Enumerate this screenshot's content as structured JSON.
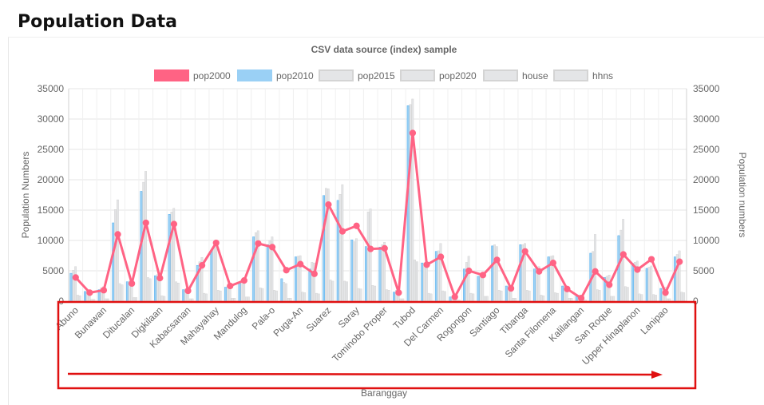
{
  "page": {
    "title": "Population Data"
  },
  "chart_data": {
    "type": "bar",
    "title": "CSV data source (index) sample",
    "xlabel": "Baranggay",
    "ylabel": "Population Numbers",
    "y2label": "Population numbers",
    "ylim": [
      0,
      35000
    ],
    "yticks": [
      "0",
      "5000",
      "10000",
      "15000",
      "20000",
      "25000",
      "30000",
      "35000"
    ],
    "legend_position": "top",
    "grid": true,
    "categories": [
      "Abuno",
      "",
      "Bunawan",
      "",
      "Ditucalan",
      "",
      "Digkilaan",
      "",
      "Kabacsanan",
      "",
      "Mahayahay",
      "",
      "Mandulog",
      "",
      "Pala-o",
      "",
      "Puga-An",
      "",
      "Suarez",
      "",
      "Saray",
      "",
      "Tominobo Proper",
      "",
      "Tubod",
      "",
      "Del Carmen",
      "",
      "Rogongon",
      "",
      "Santiago",
      "",
      "Tibanga",
      "",
      "Santa Filomena",
      "",
      "Kalilangan",
      "",
      "San Roque",
      "",
      "Upper Hinaplanon",
      "",
      "Lanipao",
      ""
    ],
    "series": [
      {
        "name": "pop2000",
        "type": "line",
        "color": "#ff6384",
        "values": [
          3900,
          1400,
          1800,
          11000,
          2900,
          12900,
          3800,
          12700,
          1700,
          5900,
          9600,
          2500,
          3400,
          9500,
          8900,
          5100,
          6100,
          4500,
          15900,
          11500,
          12400,
          8600,
          8700,
          1400,
          27700,
          6000,
          7300,
          700,
          5000,
          4300,
          6800,
          2100,
          8200,
          4900,
          6300,
          2000,
          500,
          4900,
          2700,
          7700,
          5200,
          6900,
          1400,
          6500
        ]
      },
      {
        "name": "pop2010",
        "type": "bar",
        "color": "#9ad0f5",
        "values": [
          4600,
          1600,
          1900,
          12900,
          3200,
          18100,
          4200,
          14300,
          1900,
          5900,
          8400,
          2300,
          3200,
          10600,
          9300,
          3700,
          7300,
          5300,
          17400,
          16600,
          10100,
          9000,
          8900,
          1500,
          32200,
          6300,
          8200,
          700,
          5300,
          4100,
          9100,
          2500,
          9300,
          5300,
          7300,
          2500,
          900,
          7900,
          3900,
          10800,
          6200,
          5400,
          2100,
          7300
        ]
      },
      {
        "name": "pop2015",
        "type": "bar",
        "color": "#e4e5e7",
        "values": [
          5100,
          1700,
          2200,
          15100,
          3300,
          19600,
          4400,
          14700,
          2000,
          6500,
          8900,
          2500,
          3500,
          11300,
          10000,
          3100,
          7400,
          6400,
          18600,
          17600,
          9800,
          14700,
          9300,
          1800,
          32400,
          6300,
          8300,
          800,
          6400,
          4300,
          9300,
          2500,
          9300,
          5500,
          7400,
          2400,
          1000,
          8200,
          4100,
          11700,
          6400,
          5600,
          2200,
          7700
        ]
      },
      {
        "name": "pop2020",
        "type": "bar",
        "color": "#e4e5e7",
        "values": [
          5700,
          1800,
          2400,
          16700,
          3400,
          21400,
          4600,
          15300,
          2100,
          7200,
          9500,
          2800,
          3800,
          11600,
          10600,
          2900,
          7500,
          6300,
          18500,
          19200,
          10300,
          15200,
          9700,
          1900,
          33300,
          6500,
          9500,
          900,
          7400,
          4500,
          9000,
          2600,
          9500,
          5700,
          7500,
          2500,
          1000,
          11000,
          4300,
          13500,
          6600,
          5800,
          2300,
          8300
        ]
      },
      {
        "name": "house",
        "type": "bar",
        "color": "#e4e5e7",
        "values": [
          1000,
          300,
          400,
          2900,
          600,
          3900,
          900,
          3200,
          400,
          1300,
          1800,
          500,
          700,
          2200,
          1800,
          500,
          1500,
          1300,
          3500,
          3300,
          2100,
          2600,
          1900,
          400,
          6800,
          1300,
          1700,
          200,
          1300,
          800,
          1800,
          500,
          1800,
          1000,
          1400,
          500,
          200,
          1900,
          800,
          2400,
          1200,
          1100,
          400,
          1500
        ]
      },
      {
        "name": "hhns",
        "type": "bar",
        "color": "#e4e5e7",
        "values": [
          900,
          300,
          400,
          2700,
          600,
          3700,
          800,
          3000,
          400,
          1200,
          1700,
          500,
          700,
          2100,
          1700,
          500,
          1400,
          1200,
          3300,
          3200,
          2000,
          2500,
          1800,
          400,
          6500,
          1200,
          1600,
          200,
          1200,
          800,
          1700,
          500,
          1700,
          900,
          1300,
          500,
          200,
          1800,
          800,
          2300,
          1100,
          1000,
          400,
          1400
        ]
      }
    ],
    "annotation": {
      "box_color": "#e01010",
      "arrow_color": "#e01010"
    }
  }
}
